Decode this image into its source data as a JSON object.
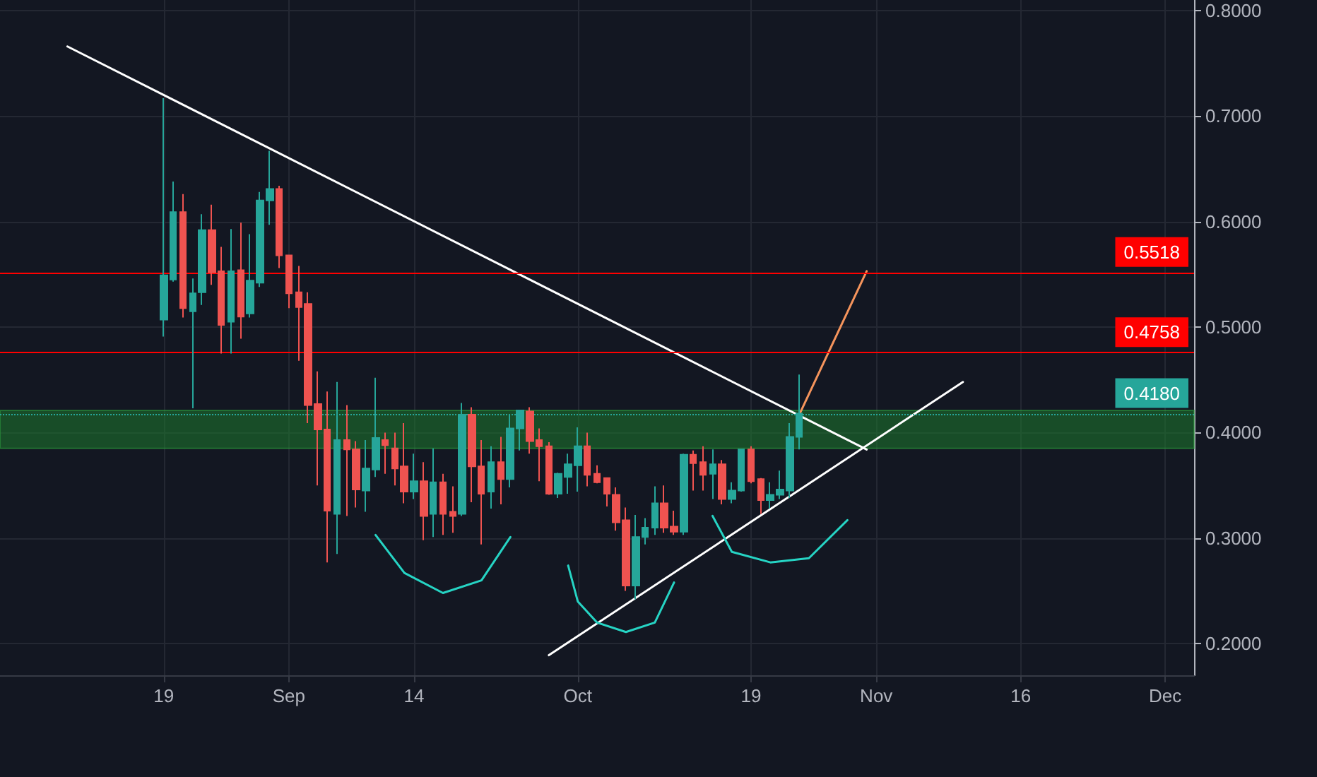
{
  "chart_data": {
    "type": "candlestick",
    "x": [
      "--08-19",
      "--08-20",
      "--08-21",
      "--08-22",
      "--08-23",
      "--08-24",
      "--08-25",
      "--08-26",
      "--08-27",
      "--08-28",
      "--08-29",
      "--08-30",
      "--08-31",
      "--09-01",
      "--09-02",
      "--09-03",
      "--09-04",
      "--09-05",
      "--09-06",
      "--09-07",
      "--09-08",
      "--09-09",
      "--09-10",
      "--09-11",
      "--09-12",
      "--09-13",
      "--09-14",
      "--09-15",
      "--09-16",
      "--09-17",
      "--09-18",
      "--09-19",
      "--09-20",
      "--09-21",
      "--09-22",
      "--09-23",
      "--09-24",
      "--09-25",
      "--09-26",
      "--09-27",
      "--09-28",
      "--09-29",
      "--09-30",
      "--10-01",
      "--10-02",
      "--10-03",
      "--10-04",
      "--10-05",
      "--10-06",
      "--10-07",
      "--10-08",
      "--10-09",
      "--10-10",
      "--10-11",
      "--10-12",
      "--10-13",
      "--10-14",
      "--10-15",
      "--10-16",
      "--10-17",
      "--10-18",
      "--10-19",
      "--10-20",
      "--10-21",
      "--10-22",
      "--10-23",
      "--10-24"
    ],
    "ohlc": [
      [
        0.507,
        0.717,
        0.491,
        0.549
      ],
      [
        0.545,
        0.638,
        0.543,
        0.609
      ],
      [
        0.609,
        0.626,
        0.509,
        0.518
      ],
      [
        0.515,
        0.546,
        0.423,
        0.532
      ],
      [
        0.533,
        0.607,
        0.521,
        0.592
      ],
      [
        0.592,
        0.616,
        0.54,
        0.552
      ],
      [
        0.553,
        0.576,
        0.475,
        0.502
      ],
      [
        0.505,
        0.593,
        0.475,
        0.553
      ],
      [
        0.554,
        0.599,
        0.489,
        0.51
      ],
      [
        0.513,
        0.588,
        0.509,
        0.544
      ],
      [
        0.542,
        0.628,
        0.538,
        0.62
      ],
      [
        0.62,
        0.667,
        0.597,
        0.631
      ],
      [
        0.631,
        0.634,
        0.556,
        0.568
      ],
      [
        0.568,
        0.568,
        0.518,
        0.532
      ],
      [
        0.533,
        0.558,
        0.468,
        0.519
      ],
      [
        0.522,
        0.533,
        0.409,
        0.426
      ],
      [
        0.427,
        0.458,
        0.35,
        0.403
      ],
      [
        0.403,
        0.439,
        0.277,
        0.326
      ],
      [
        0.323,
        0.448,
        0.285,
        0.393
      ],
      [
        0.393,
        0.426,
        0.321,
        0.384
      ],
      [
        0.384,
        0.392,
        0.329,
        0.346
      ],
      [
        0.345,
        0.393,
        0.325,
        0.366
      ],
      [
        0.365,
        0.452,
        0.358,
        0.395
      ],
      [
        0.393,
        0.4,
        0.361,
        0.388
      ],
      [
        0.385,
        0.4,
        0.35,
        0.366
      ],
      [
        0.368,
        0.409,
        0.333,
        0.344
      ],
      [
        0.344,
        0.38,
        0.337,
        0.354
      ],
      [
        0.354,
        0.372,
        0.298,
        0.321
      ],
      [
        0.323,
        0.385,
        0.301,
        0.353
      ],
      [
        0.353,
        0.361,
        0.303,
        0.323
      ],
      [
        0.325,
        0.349,
        0.305,
        0.321
      ],
      [
        0.323,
        0.428,
        0.321,
        0.417
      ],
      [
        0.417,
        0.424,
        0.334,
        0.368
      ],
      [
        0.368,
        0.393,
        0.294,
        0.342
      ],
      [
        0.344,
        0.387,
        0.328,
        0.372
      ],
      [
        0.372,
        0.396,
        0.332,
        0.356
      ],
      [
        0.356,
        0.417,
        0.348,
        0.404
      ],
      [
        0.404,
        0.421,
        0.383,
        0.421
      ],
      [
        0.42,
        0.424,
        0.38,
        0.392
      ],
      [
        0.393,
        0.404,
        0.354,
        0.387
      ],
      [
        0.387,
        0.391,
        0.341,
        0.342
      ],
      [
        0.342,
        0.362,
        0.338,
        0.361
      ],
      [
        0.358,
        0.38,
        0.342,
        0.37
      ],
      [
        0.369,
        0.405,
        0.344,
        0.387
      ],
      [
        0.387,
        0.4,
        0.349,
        0.36
      ],
      [
        0.361,
        0.369,
        0.352,
        0.353
      ],
      [
        0.357,
        0.357,
        0.33,
        0.342
      ],
      [
        0.341,
        0.348,
        0.307,
        0.315
      ],
      [
        0.317,
        0.329,
        0.25,
        0.255
      ],
      [
        0.255,
        0.322,
        0.242,
        0.301
      ],
      [
        0.301,
        0.319,
        0.294,
        0.31
      ],
      [
        0.31,
        0.349,
        0.303,
        0.333
      ],
      [
        0.333,
        0.35,
        0.305,
        0.31
      ],
      [
        0.311,
        0.326,
        0.303,
        0.306
      ],
      [
        0.306,
        0.38,
        0.303,
        0.379
      ],
      [
        0.379,
        0.383,
        0.345,
        0.371
      ],
      [
        0.372,
        0.387,
        0.345,
        0.36
      ],
      [
        0.361,
        0.384,
        0.337,
        0.37
      ],
      [
        0.37,
        0.374,
        0.332,
        0.337
      ],
      [
        0.337,
        0.353,
        0.333,
        0.345
      ],
      [
        0.345,
        0.384,
        0.344,
        0.384
      ],
      [
        0.384,
        0.387,
        0.352,
        0.354
      ],
      [
        0.356,
        0.357,
        0.323,
        0.336
      ],
      [
        0.336,
        0.353,
        0.328,
        0.341
      ],
      [
        0.341,
        0.364,
        0.337,
        0.346
      ],
      [
        0.345,
        0.409,
        0.338,
        0.396
      ],
      [
        0.396,
        0.455,
        0.384,
        0.418
      ]
    ],
    "series": [
      {
        "type": "line",
        "color": "#ffffff",
        "x": [
          "--08-09",
          "--10-31"
        ],
        "values": [
          0.766,
          0.384
        ]
      },
      {
        "type": "line",
        "color": "#ffffff",
        "x": [
          "--09-28",
          "--11-10"
        ],
        "values": [
          0.189,
          0.448
        ]
      },
      {
        "type": "line",
        "color": "#f5945c",
        "x": [
          "--10-24",
          "--10-31"
        ],
        "values": [
          0.417,
          0.553
        ]
      },
      {
        "type": "line",
        "color": "#26d4c4",
        "x": [
          "--09-10",
          "--09-13",
          "--09-17",
          "--09-21",
          "--09-24"
        ],
        "values": [
          0.303,
          0.267,
          0.248,
          0.26,
          0.301
        ]
      },
      {
        "type": "line",
        "color": "#26d4c4",
        "x": [
          "--09-30",
          "--10-01",
          "--10-03",
          "--10-06",
          "--10-09",
          "--10-11"
        ],
        "values": [
          0.274,
          0.24,
          0.22,
          0.211,
          0.22,
          0.258
        ]
      },
      {
        "type": "line",
        "color": "#26d4c4",
        "x": [
          "--10-15",
          "--10-17",
          "--10-21",
          "--10-25",
          "--10-29"
        ],
        "values": [
          0.321,
          0.287,
          0.277,
          0.281,
          0.317
        ]
      }
    ],
    "ref_lines": [
      {
        "axis": "y",
        "value": 0.5518,
        "label": "0.5518",
        "color": "#ff0000",
        "line_style": "solid"
      },
      {
        "axis": "y",
        "value": 0.4758,
        "label": "0.4758",
        "color": "#ff0000",
        "line_style": "solid"
      },
      {
        "axis": "y",
        "value": 0.418,
        "label": "0.4180",
        "color": "#26a69a",
        "line_style": "dotted"
      }
    ],
    "bands": [
      {
        "axis": "y",
        "from": 0.385,
        "to": 0.421,
        "color": "#1e7a2e"
      }
    ],
    "xlim": [
      "--08-02",
      "--12-04"
    ],
    "xticks": [
      {
        "value": "--08-19",
        "label": "19"
      },
      {
        "value": "--09-01",
        "label": "Sep"
      },
      {
        "value": "--09-14",
        "label": "14"
      },
      {
        "value": "--10-01",
        "label": "Oct"
      },
      {
        "value": "--10-19",
        "label": "19"
      },
      {
        "value": "--11-01",
        "label": "Nov"
      },
      {
        "value": "--11-16",
        "label": "16"
      },
      {
        "value": "--12-01",
        "label": "Dec"
      }
    ],
    "ylim": [
      0.17,
      0.81
    ],
    "yticks": [
      {
        "value": 0.2,
        "label": "0.2000"
      },
      {
        "value": 0.3,
        "label": "0.3000"
      },
      {
        "value": 0.4,
        "label": "0.4000"
      },
      {
        "value": 0.5,
        "label": "0.5000"
      },
      {
        "value": 0.6,
        "label": "0.6000"
      },
      {
        "value": 0.7,
        "label": "0.7000"
      },
      {
        "value": 0.8,
        "label": "0.8000"
      }
    ],
    "grid": true
  }
}
